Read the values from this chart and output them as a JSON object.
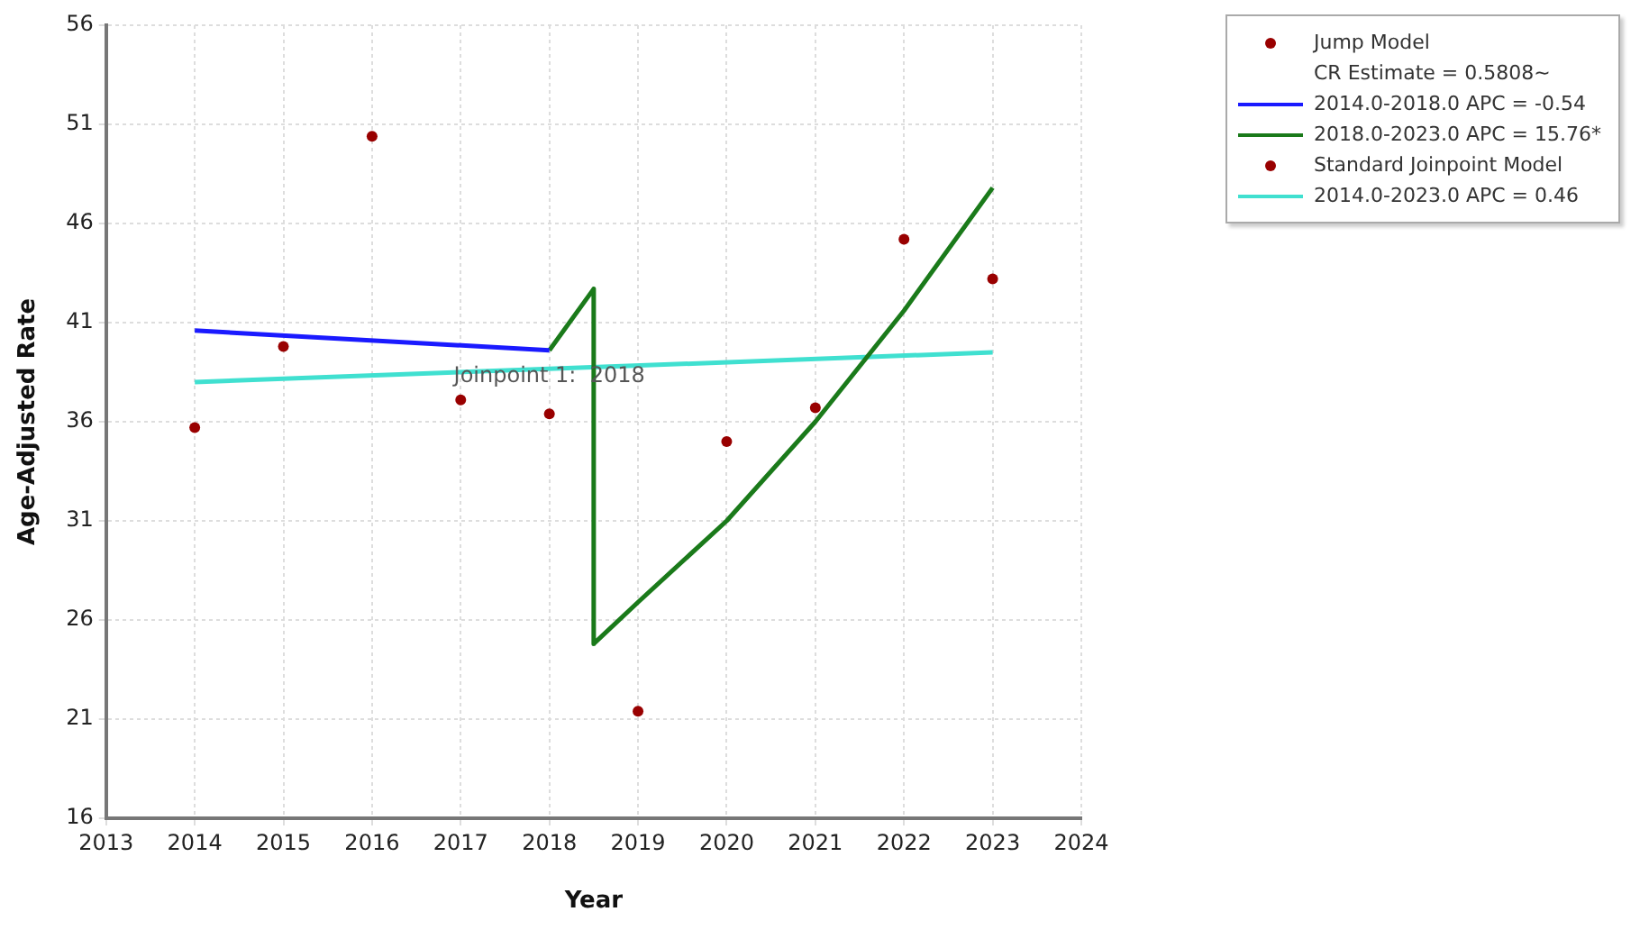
{
  "chart_data": {
    "type": "line",
    "xlabel": "Year",
    "ylabel": "Age-Adjusted Rate",
    "xlim": [
      2013,
      2024
    ],
    "xticks": [
      2013,
      2014,
      2015,
      2016,
      2017,
      2018,
      2019,
      2020,
      2021,
      2022,
      2023,
      2024
    ],
    "ylim": [
      16,
      56
    ],
    "yticks": [
      16,
      21,
      26,
      31,
      36,
      41,
      46,
      51,
      56
    ],
    "grid": true,
    "legend": "right",
    "series": [
      {
        "name": "Jump Model",
        "type": "scatter",
        "marker": "circle",
        "color": "#990000",
        "x": [
          2014,
          2015,
          2016,
          2017,
          2018,
          2019,
          2020,
          2021,
          2022,
          2023
        ],
        "values": [
          35.7,
          39.8,
          50.4,
          37.1,
          36.4,
          21.4,
          35.0,
          36.7,
          45.2,
          43.2
        ]
      },
      {
        "name": "2014.0-2018.0 APC  =  -0.54",
        "type": "line",
        "color": "#1a1aff",
        "x": [
          2014,
          2018
        ],
        "values": [
          40.6,
          39.6
        ]
      },
      {
        "name": "2018.0-2023.0 APC  =  15.76*",
        "type": "line",
        "color": "#1a7a1a",
        "x": [
          2018,
          2018.5,
          2018.5,
          2019,
          2020,
          2021,
          2022,
          2023
        ],
        "values": [
          39.6,
          42.7,
          24.8,
          26.9,
          31.0,
          36.0,
          41.6,
          47.8
        ]
      },
      {
        "name": "Standard Joinpoint Model",
        "type": "scatter",
        "marker": "circle",
        "color": "#990000"
      },
      {
        "name": "2014.0-2023.0 APC  =  0.46",
        "type": "line",
        "color": "#40e0d0",
        "x": [
          2014,
          2023
        ],
        "values": [
          38.0,
          39.5
        ]
      }
    ],
    "annotations": [
      {
        "text": "Joinpoint 1:  2018",
        "x": 2018,
        "y": 38.3
      },
      "CR Estimate = 0.5808~"
    ]
  }
}
